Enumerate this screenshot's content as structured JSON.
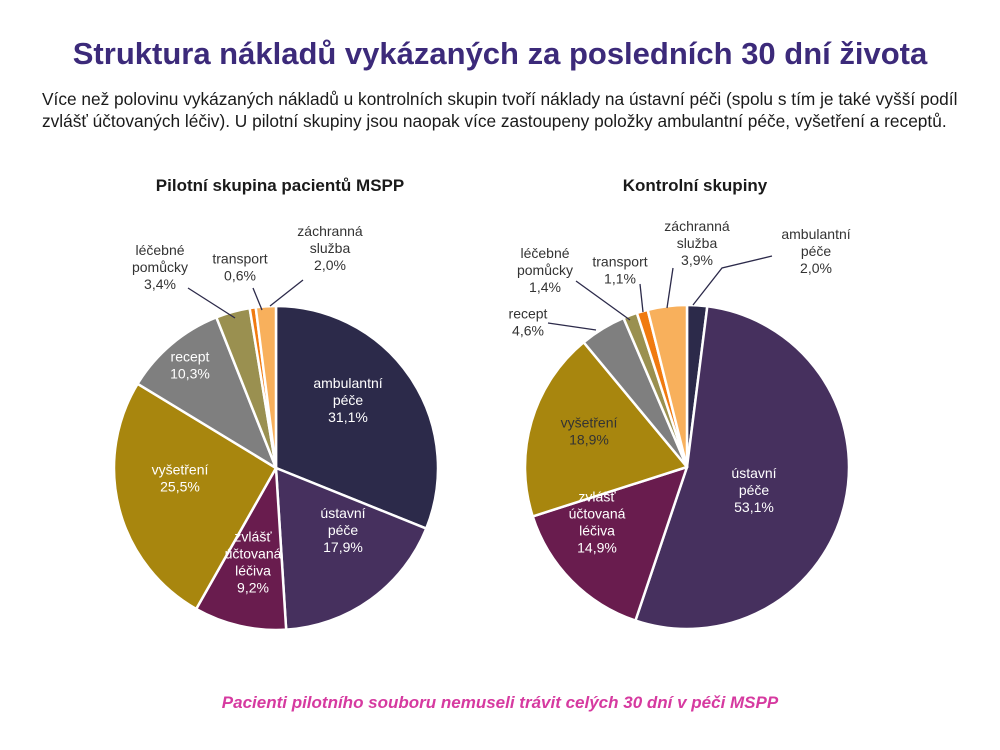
{
  "title": "Struktura nákladů vykázaných za posledních 30 dní života",
  "intro": "Více než polovinu vykázaných nákladů u kontrolních skupin tvoří náklady na ústavní péči (spolu s tím je také vyšší podíl zvlášť účtovaných léčiv). U pilotní skupiny jsou naopak více zastoupeny položky ambulantní péče, vyšetření a receptů.",
  "footnote": "Pacienti pilotního souboru nemuseli trávit celých 30 dní v péči MSPP",
  "colors": {
    "ambulantní péče": "#2c2a4a",
    "ústavní péče": "#46305e",
    "zvlášť účtovaná léčiva": "#691c4e",
    "vyšetření": "#a8860e",
    "recept": "#7f7f7f",
    "léčebné pomůcky": "#9a9050",
    "transport": "#f07a10",
    "záchranná služba": "#f8b05c"
  },
  "chart_data": [
    {
      "type": "pie",
      "title": "Pilotní skupina pacientů MSPP",
      "slices": [
        {
          "label": "ambulantní péče",
          "value": 31.1,
          "display": "31,1%"
        },
        {
          "label": "ústavní péče",
          "value": 17.9,
          "display": "17,9%"
        },
        {
          "label": "zvlášť účtovaná léčiva",
          "value": 9.2,
          "display": "9,2%"
        },
        {
          "label": "vyšetření",
          "value": 25.5,
          "display": "25,5%"
        },
        {
          "label": "recept",
          "value": 10.3,
          "display": "10,3%"
        },
        {
          "label": "léčebné pomůcky",
          "value": 3.4,
          "display": "3,4%"
        },
        {
          "label": "transport",
          "value": 0.6,
          "display": "0,6%"
        },
        {
          "label": "záchranná služba",
          "value": 2.0,
          "display": "2,0%"
        }
      ]
    },
    {
      "type": "pie",
      "title": "Kontrolní skupiny",
      "slices": [
        {
          "label": "ambulantní péče",
          "value": 2.0,
          "display": "2,0%"
        },
        {
          "label": "ústavní péče",
          "value": 53.1,
          "display": "53,1%"
        },
        {
          "label": "zvlášť účtovaná léčiva",
          "value": 14.9,
          "display": "14,9%"
        },
        {
          "label": "vyšetření",
          "value": 18.9,
          "display": "18,9%"
        },
        {
          "label": "recept",
          "value": 4.6,
          "display": "4,6%"
        },
        {
          "label": "léčebné pomůcky",
          "value": 1.4,
          "display": "1,4%"
        },
        {
          "label": "transport",
          "value": 1.1,
          "display": "1,1%"
        },
        {
          "label": "záchranná služba",
          "value": 3.9,
          "display": "3,9%"
        }
      ]
    }
  ]
}
